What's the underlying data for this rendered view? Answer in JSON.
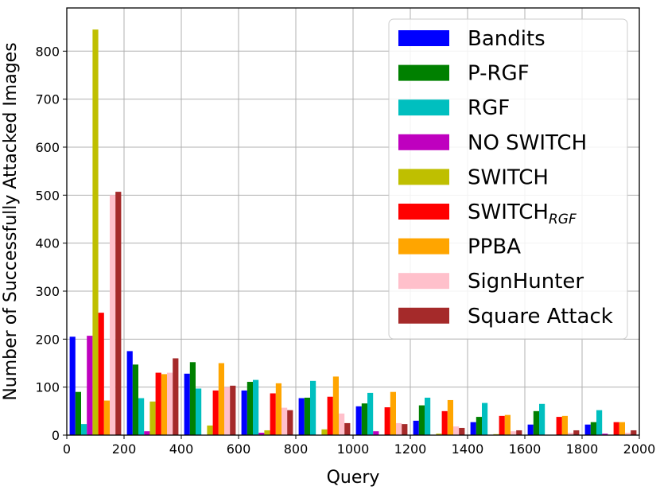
{
  "chart_data": {
    "type": "bar",
    "xlabel": "Query",
    "ylabel": "Number of Successfully Attacked Images",
    "xlim": [
      0,
      2000
    ],
    "ylim": [
      0,
      890
    ],
    "xticks": [
      0,
      200,
      400,
      600,
      800,
      1000,
      1200,
      1400,
      1600,
      1800,
      2000
    ],
    "yticks": [
      0,
      100,
      200,
      300,
      400,
      500,
      600,
      700,
      800
    ],
    "grid": true,
    "legend_position": "top-right",
    "bin_width": 200,
    "x": [
      0,
      200,
      400,
      600,
      800,
      1000,
      1200,
      1400,
      1600,
      1800
    ],
    "series": [
      {
        "name": "Bandits",
        "legend_sub": "",
        "color": "#0000ff",
        "values": [
          205,
          175,
          128,
          93,
          77,
          60,
          30,
          27,
          22,
          22
        ]
      },
      {
        "name": "P-RGF",
        "legend_sub": "",
        "color": "#008000",
        "values": [
          90,
          147,
          152,
          111,
          78,
          66,
          62,
          38,
          50,
          27
        ]
      },
      {
        "name": "RGF",
        "legend_sub": "",
        "color": "#00bfbf",
        "values": [
          23,
          77,
          97,
          115,
          113,
          88,
          78,
          67,
          65,
          52
        ]
      },
      {
        "name": "NO SWITCH",
        "legend_sub": "",
        "color": "#bf00bf",
        "values": [
          207,
          8,
          0,
          5,
          0,
          8,
          0,
          0,
          0,
          3
        ]
      },
      {
        "name": "SWITCH",
        "legend_sub": "",
        "color": "#bfbf00",
        "values": [
          845,
          70,
          20,
          10,
          12,
          0,
          3,
          2,
          0,
          0
        ]
      },
      {
        "name": "SWITCH",
        "legend_sub": "RGF",
        "color": "#ff0000",
        "values": [
          255,
          130,
          93,
          87,
          80,
          58,
          50,
          40,
          38,
          27
        ]
      },
      {
        "name": "PPBA",
        "legend_sub": "",
        "color": "#ffa500",
        "values": [
          72,
          127,
          150,
          108,
          122,
          90,
          73,
          42,
          40,
          27
        ]
      },
      {
        "name": "SignHunter",
        "legend_sub": "",
        "color": "#ffc0cb",
        "values": [
          500,
          130,
          100,
          57,
          45,
          25,
          18,
          8,
          5,
          5
        ]
      },
      {
        "name": "Square Attack",
        "legend_sub": "",
        "color": "#a52a2a",
        "values": [
          507,
          160,
          103,
          52,
          25,
          23,
          15,
          10,
          10,
          10
        ]
      }
    ]
  }
}
